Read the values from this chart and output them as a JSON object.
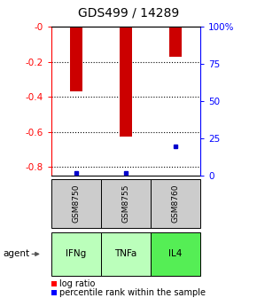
{
  "title": "GDS499 / 14289",
  "samples": [
    "GSM8750",
    "GSM8755",
    "GSM8760"
  ],
  "agents": [
    "IFNg",
    "TNFa",
    "IL4"
  ],
  "log_ratios": [
    -0.37,
    -0.625,
    -0.17
  ],
  "percentile_ranks": [
    2.0,
    2.0,
    20.0
  ],
  "ylim_left": [
    -0.85,
    0.0
  ],
  "ylim_right": [
    0,
    100
  ],
  "yticks_left": [
    0,
    -0.2,
    -0.4,
    -0.6,
    -0.8
  ],
  "yticks_right": [
    0,
    25,
    50,
    75,
    100
  ],
  "ytick_labels_left": [
    "-0",
    "-0.2",
    "-0.4",
    "-0.6",
    "-0.8"
  ],
  "ytick_labels_right": [
    "0",
    "25",
    "50",
    "75",
    "100%"
  ],
  "bar_color": "#cc0000",
  "dot_color": "#0000cc",
  "agent_colors": [
    "#bbffbb",
    "#bbffbb",
    "#55ee55"
  ],
  "sample_bg": "#cccccc",
  "bar_width": 0.25,
  "title_fontsize": 10,
  "tick_fontsize": 7.5,
  "legend_fontsize": 7
}
